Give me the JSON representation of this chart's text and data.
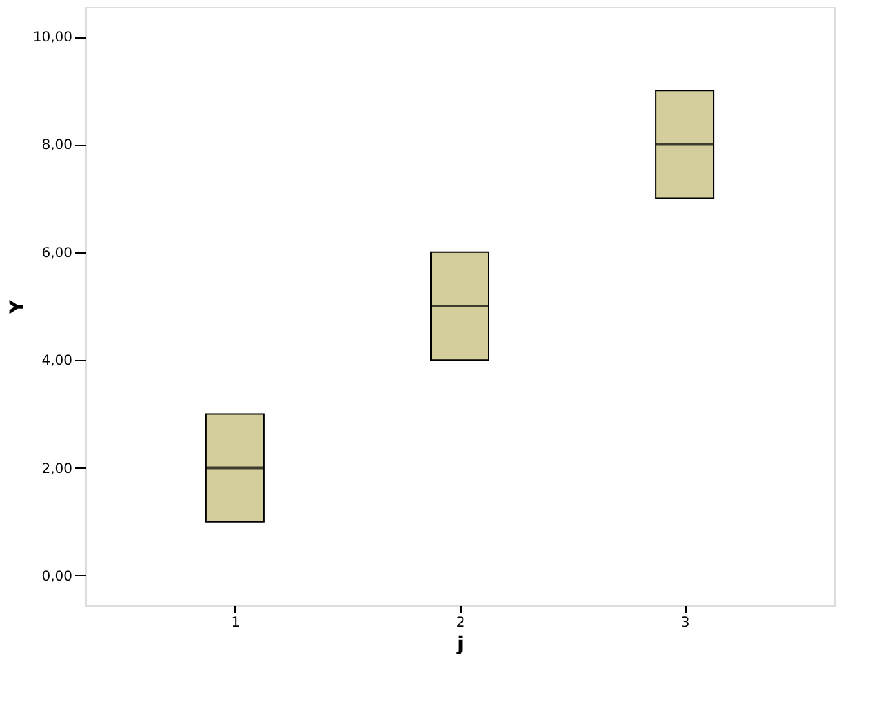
{
  "chart_data": {
    "type": "box",
    "xlabel": "j",
    "ylabel": "Y",
    "categories": [
      "1",
      "2",
      "3"
    ],
    "boxes": [
      {
        "low": 1,
        "q1": 1,
        "median": 2,
        "q3": 3,
        "high": 3
      },
      {
        "low": 4,
        "q1": 4,
        "median": 5,
        "q3": 6,
        "high": 6
      },
      {
        "low": 7,
        "q1": 7,
        "median": 8,
        "q3": 9,
        "high": 9
      }
    ],
    "color": "#d3ce9c",
    "ylim": [
      -0.55,
      10.55
    ],
    "yticks": [
      {
        "value": 0,
        "label": "0,00"
      },
      {
        "value": 2,
        "label": "2,00"
      },
      {
        "value": 4,
        "label": "4,00"
      },
      {
        "value": 6,
        "label": "6,00"
      },
      {
        "value": 8,
        "label": "8,00"
      },
      {
        "value": 10,
        "label": "10,00"
      }
    ],
    "grid": false
  }
}
